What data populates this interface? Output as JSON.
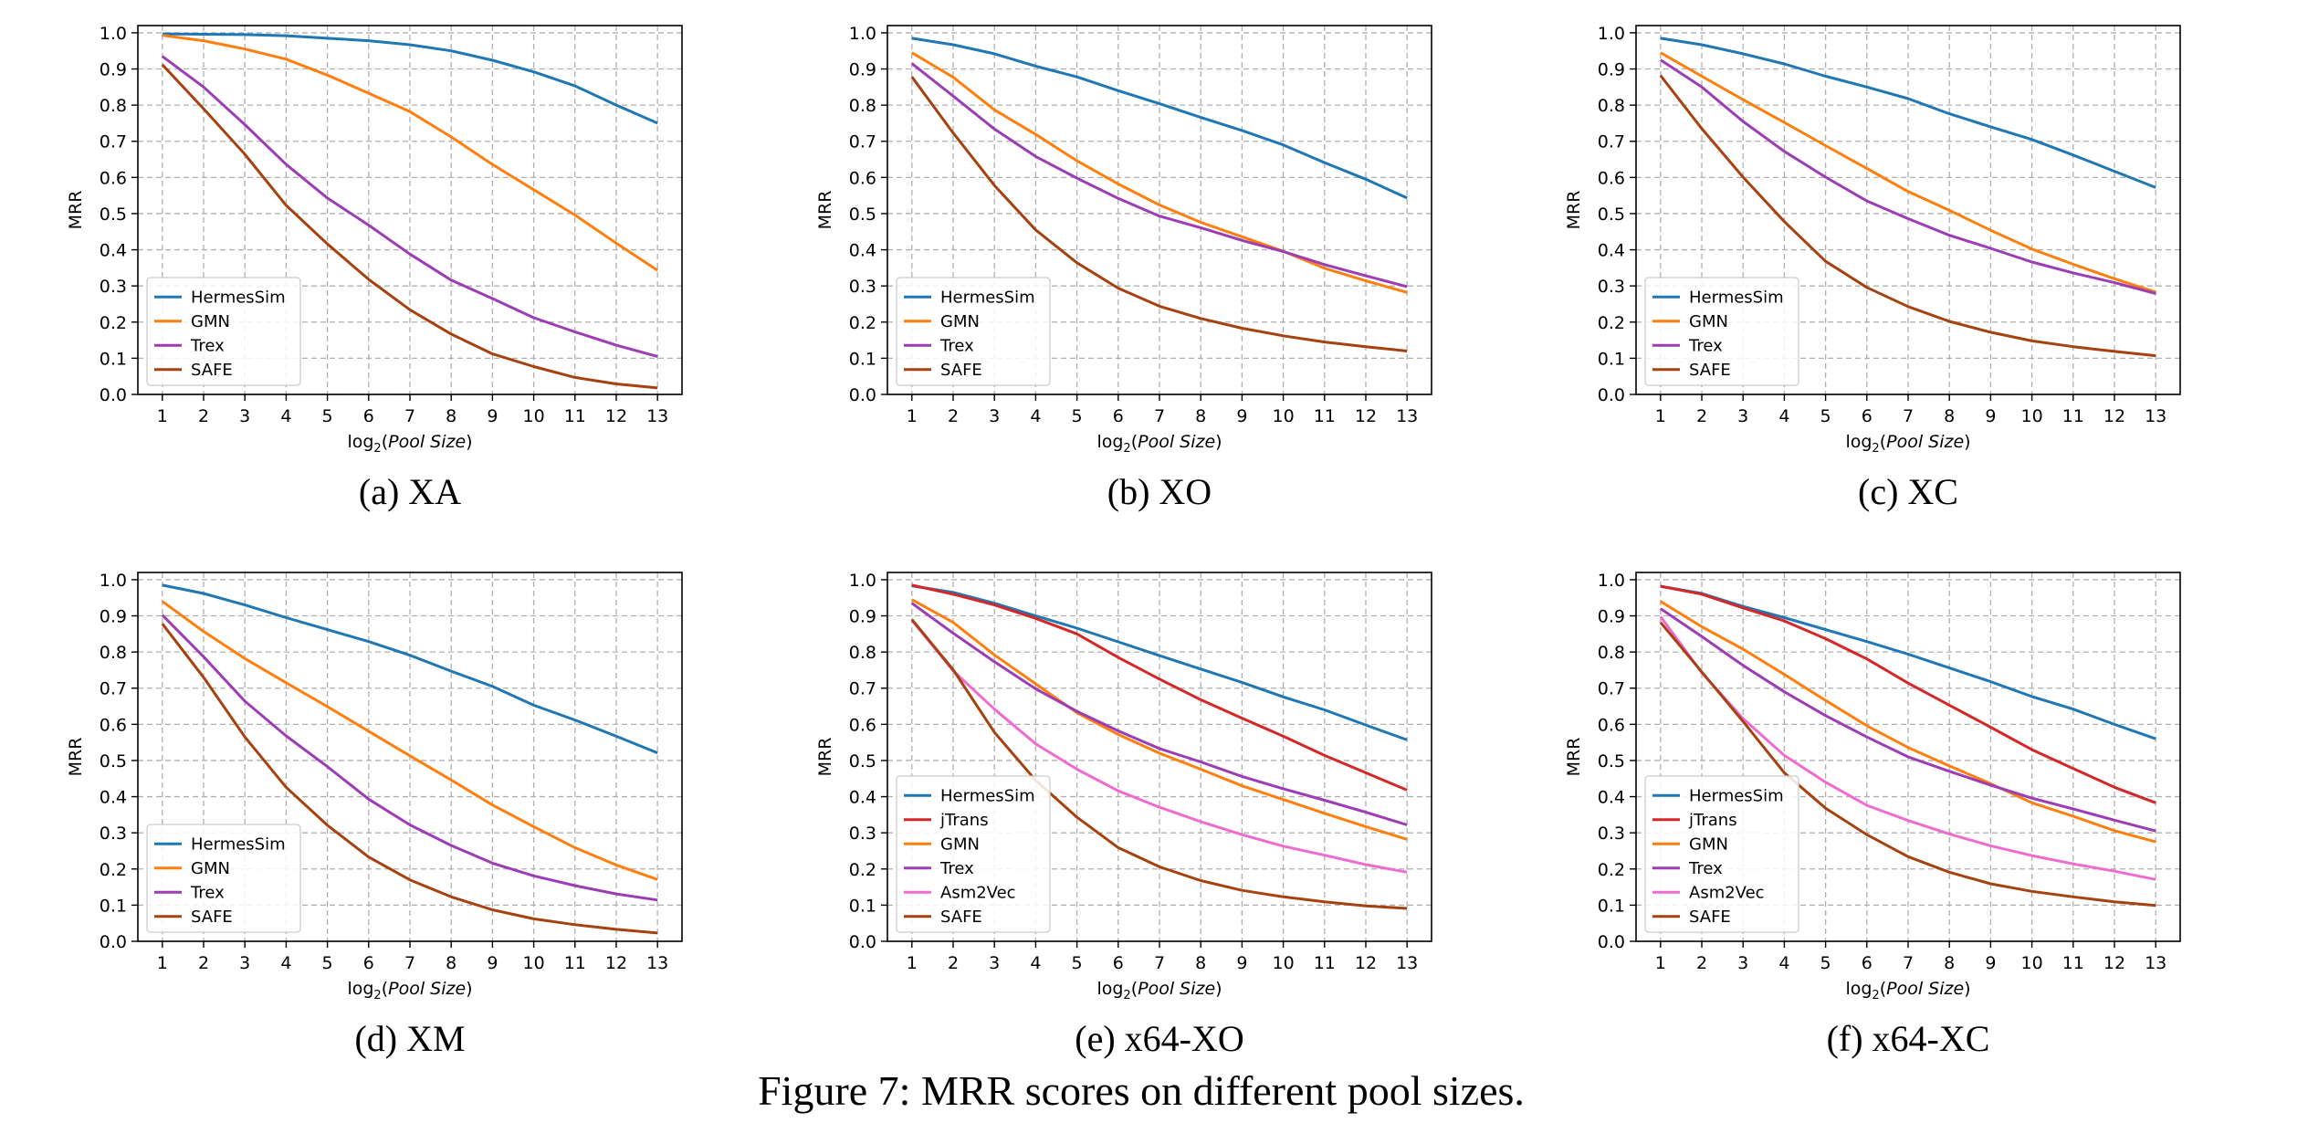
{
  "figure_caption": "Figure 7: MRR scores on different pool sizes.",
  "colors": {
    "HermesSim": "#1f77b4",
    "jTrans": "#d62728",
    "GMN": "#ff7f0e",
    "Trex": "#9d3db5",
    "Asm2Vec": "#f06bd0",
    "SAFE": "#a6420f"
  },
  "chart_data": [
    {
      "type": "line",
      "caption": "(a) XA",
      "ylabel": "MRR",
      "xlabel_main": "log",
      "xlabel_sub": "2",
      "xlabel_arg": "Pool Size",
      "x": [
        1,
        2,
        3,
        4,
        5,
        6,
        7,
        8,
        9,
        10,
        11,
        12,
        13
      ],
      "ylim": [
        0,
        1.0
      ],
      "yticks": [
        "0.0",
        "0.1",
        "0.2",
        "0.3",
        "0.4",
        "0.5",
        "0.6",
        "0.7",
        "0.8",
        "0.9",
        "1.0"
      ],
      "grid": true,
      "legend_position": "lower-left",
      "series": [
        {
          "name": "HermesSim",
          "values": [
            0.997,
            0.996,
            0.995,
            0.992,
            0.985,
            0.978,
            0.967,
            0.95,
            0.924,
            0.892,
            0.853,
            0.8,
            0.75
          ]
        },
        {
          "name": "GMN",
          "values": [
            0.993,
            0.978,
            0.955,
            0.927,
            0.883,
            0.833,
            0.782,
            0.712,
            0.636,
            0.566,
            0.496,
            0.418,
            0.343
          ]
        },
        {
          "name": "Trex",
          "values": [
            0.935,
            0.85,
            0.746,
            0.636,
            0.543,
            0.468,
            0.388,
            0.316,
            0.265,
            0.212,
            0.173,
            0.136,
            0.105
          ]
        },
        {
          "name": "SAFE",
          "values": [
            0.912,
            0.79,
            0.664,
            0.523,
            0.416,
            0.318,
            0.234,
            0.167,
            0.112,
            0.077,
            0.047,
            0.029,
            0.018
          ]
        }
      ]
    },
    {
      "type": "line",
      "caption": "(b) XO",
      "ylabel": "MRR",
      "xlabel_main": "log",
      "xlabel_sub": "2",
      "xlabel_arg": "Pool Size",
      "x": [
        1,
        2,
        3,
        4,
        5,
        6,
        7,
        8,
        9,
        10,
        11,
        12,
        13
      ],
      "ylim": [
        0,
        1.0
      ],
      "yticks": [
        "0.0",
        "0.1",
        "0.2",
        "0.3",
        "0.4",
        "0.5",
        "0.6",
        "0.7",
        "0.8",
        "0.9",
        "1.0"
      ],
      "grid": true,
      "legend_position": "lower-left",
      "series": [
        {
          "name": "HermesSim",
          "values": [
            0.985,
            0.967,
            0.942,
            0.908,
            0.878,
            0.84,
            0.804,
            0.766,
            0.73,
            0.69,
            0.641,
            0.595,
            0.543
          ]
        },
        {
          "name": "GMN",
          "values": [
            0.945,
            0.877,
            0.787,
            0.719,
            0.646,
            0.582,
            0.524,
            0.476,
            0.436,
            0.396,
            0.349,
            0.314,
            0.282
          ]
        },
        {
          "name": "Trex",
          "values": [
            0.915,
            0.825,
            0.734,
            0.658,
            0.598,
            0.542,
            0.493,
            0.461,
            0.426,
            0.395,
            0.359,
            0.328,
            0.298
          ]
        },
        {
          "name": "SAFE",
          "values": [
            0.878,
            0.723,
            0.578,
            0.455,
            0.364,
            0.294,
            0.244,
            0.21,
            0.183,
            0.162,
            0.145,
            0.132,
            0.12
          ]
        }
      ]
    },
    {
      "type": "line",
      "caption": "(c) XC",
      "ylabel": "MRR",
      "xlabel_main": "log",
      "xlabel_sub": "2",
      "xlabel_arg": "Pool Size",
      "x": [
        1,
        2,
        3,
        4,
        5,
        6,
        7,
        8,
        9,
        10,
        11,
        12,
        13
      ],
      "ylim": [
        0,
        1.0
      ],
      "yticks": [
        "0.0",
        "0.1",
        "0.2",
        "0.3",
        "0.4",
        "0.5",
        "0.6",
        "0.7",
        "0.8",
        "0.9",
        "1.0"
      ],
      "grid": true,
      "legend_position": "lower-left",
      "series": [
        {
          "name": "HermesSim",
          "values": [
            0.985,
            0.967,
            0.942,
            0.914,
            0.88,
            0.85,
            0.818,
            0.776,
            0.74,
            0.705,
            0.662,
            0.617,
            0.572
          ]
        },
        {
          "name": "GMN",
          "values": [
            0.945,
            0.88,
            0.815,
            0.752,
            0.688,
            0.625,
            0.561,
            0.509,
            0.454,
            0.402,
            0.36,
            0.32,
            0.283
          ]
        },
        {
          "name": "Trex",
          "values": [
            0.925,
            0.85,
            0.755,
            0.672,
            0.601,
            0.535,
            0.486,
            0.44,
            0.404,
            0.366,
            0.336,
            0.309,
            0.279
          ]
        },
        {
          "name": "SAFE",
          "values": [
            0.882,
            0.735,
            0.601,
            0.478,
            0.368,
            0.296,
            0.243,
            0.202,
            0.172,
            0.148,
            0.132,
            0.119,
            0.107
          ]
        }
      ]
    },
    {
      "type": "line",
      "caption": "(d) XM",
      "ylabel": "MRR",
      "xlabel_main": "log",
      "xlabel_sub": "2",
      "xlabel_arg": "Pool Size",
      "x": [
        1,
        2,
        3,
        4,
        5,
        6,
        7,
        8,
        9,
        10,
        11,
        12,
        13
      ],
      "ylim": [
        0,
        1.0
      ],
      "yticks": [
        "0.0",
        "0.1",
        "0.2",
        "0.3",
        "0.4",
        "0.5",
        "0.6",
        "0.7",
        "0.8",
        "0.9",
        "1.0"
      ],
      "grid": true,
      "legend_position": "lower-left",
      "series": [
        {
          "name": "HermesSim",
          "values": [
            0.985,
            0.962,
            0.93,
            0.895,
            0.862,
            0.829,
            0.791,
            0.747,
            0.705,
            0.653,
            0.612,
            0.567,
            0.521
          ]
        },
        {
          "name": "GMN",
          "values": [
            0.94,
            0.857,
            0.782,
            0.715,
            0.649,
            0.581,
            0.513,
            0.446,
            0.377,
            0.317,
            0.259,
            0.211,
            0.171
          ]
        },
        {
          "name": "Trex",
          "values": [
            0.902,
            0.787,
            0.664,
            0.568,
            0.483,
            0.393,
            0.322,
            0.265,
            0.216,
            0.181,
            0.154,
            0.131,
            0.114
          ]
        },
        {
          "name": "SAFE",
          "values": [
            0.878,
            0.73,
            0.565,
            0.426,
            0.321,
            0.233,
            0.17,
            0.123,
            0.087,
            0.062,
            0.046,
            0.033,
            0.023
          ]
        }
      ]
    },
    {
      "type": "line",
      "caption": "(e) x64-XO",
      "ylabel": "MRR",
      "xlabel_main": "log",
      "xlabel_sub": "2",
      "xlabel_arg": "Pool Size",
      "x": [
        1,
        2,
        3,
        4,
        5,
        6,
        7,
        8,
        9,
        10,
        11,
        12,
        13
      ],
      "ylim": [
        0,
        1.0
      ],
      "yticks": [
        "0.0",
        "0.1",
        "0.2",
        "0.3",
        "0.4",
        "0.5",
        "0.6",
        "0.7",
        "0.8",
        "0.9",
        "1.0"
      ],
      "grid": true,
      "legend_position": "lower-left",
      "series": [
        {
          "name": "HermesSim",
          "values": [
            0.983,
            0.965,
            0.935,
            0.9,
            0.866,
            0.828,
            0.79,
            0.753,
            0.716,
            0.676,
            0.64,
            0.598,
            0.557
          ]
        },
        {
          "name": "jTrans",
          "values": [
            0.985,
            0.96,
            0.93,
            0.893,
            0.85,
            0.785,
            0.725,
            0.668,
            0.617,
            0.567,
            0.514,
            0.466,
            0.418
          ]
        },
        {
          "name": "GMN",
          "values": [
            0.945,
            0.882,
            0.792,
            0.712,
            0.632,
            0.572,
            0.52,
            0.476,
            0.43,
            0.392,
            0.354,
            0.317,
            0.282
          ]
        },
        {
          "name": "Trex",
          "values": [
            0.935,
            0.852,
            0.773,
            0.698,
            0.636,
            0.582,
            0.533,
            0.496,
            0.456,
            0.422,
            0.39,
            0.357,
            0.322
          ]
        },
        {
          "name": "Asm2Vec",
          "values": [
            0.888,
            0.748,
            0.642,
            0.546,
            0.476,
            0.416,
            0.371,
            0.331,
            0.295,
            0.263,
            0.238,
            0.212,
            0.191
          ]
        },
        {
          "name": "SAFE",
          "values": [
            0.89,
            0.751,
            0.578,
            0.445,
            0.343,
            0.259,
            0.206,
            0.168,
            0.141,
            0.123,
            0.109,
            0.098,
            0.091
          ]
        }
      ]
    },
    {
      "type": "line",
      "caption": "(f) x64-XC",
      "ylabel": "MRR",
      "xlabel_main": "log",
      "xlabel_sub": "2",
      "xlabel_arg": "Pool Size",
      "x": [
        1,
        2,
        3,
        4,
        5,
        6,
        7,
        8,
        9,
        10,
        11,
        12,
        13
      ],
      "ylim": [
        0,
        1.0
      ],
      "yticks": [
        "0.0",
        "0.1",
        "0.2",
        "0.3",
        "0.4",
        "0.5",
        "0.6",
        "0.7",
        "0.8",
        "0.9",
        "1.0"
      ],
      "grid": true,
      "legend_position": "lower-left",
      "series": [
        {
          "name": "HermesSim",
          "values": [
            0.982,
            0.962,
            0.926,
            0.895,
            0.862,
            0.829,
            0.794,
            0.756,
            0.718,
            0.677,
            0.642,
            0.6,
            0.56
          ]
        },
        {
          "name": "jTrans",
          "values": [
            0.982,
            0.96,
            0.922,
            0.886,
            0.837,
            0.781,
            0.714,
            0.653,
            0.592,
            0.53,
            0.478,
            0.426,
            0.383
          ]
        },
        {
          "name": "GMN",
          "values": [
            0.94,
            0.87,
            0.808,
            0.738,
            0.666,
            0.596,
            0.536,
            0.485,
            0.436,
            0.383,
            0.346,
            0.306,
            0.275
          ]
        },
        {
          "name": "Trex",
          "values": [
            0.92,
            0.843,
            0.763,
            0.69,
            0.624,
            0.565,
            0.51,
            0.47,
            0.432,
            0.396,
            0.366,
            0.335,
            0.305
          ]
        },
        {
          "name": "Asm2Vec",
          "values": [
            0.898,
            0.743,
            0.616,
            0.514,
            0.44,
            0.376,
            0.334,
            0.297,
            0.264,
            0.237,
            0.214,
            0.194,
            0.171
          ]
        },
        {
          "name": "SAFE",
          "values": [
            0.882,
            0.745,
            0.608,
            0.466,
            0.368,
            0.295,
            0.234,
            0.191,
            0.159,
            0.138,
            0.123,
            0.109,
            0.099
          ]
        }
      ]
    }
  ]
}
